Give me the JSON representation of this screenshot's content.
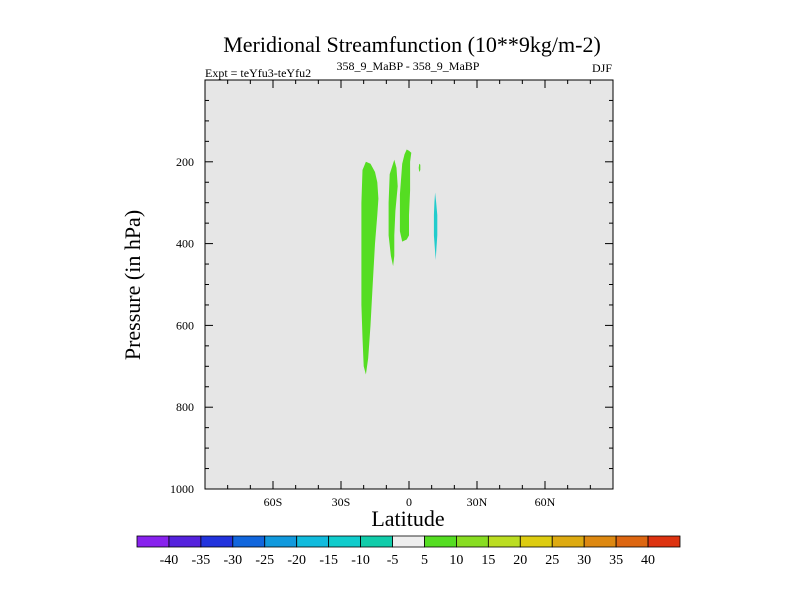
{
  "chart_data": {
    "type": "contour",
    "title": "Meridional Streamfunction (10**9kg/m-2)",
    "subtitle_left": "Expt = teYfu3-teYfu2",
    "subtitle_center": "358_9_MaBP - 358_9_MaBP",
    "subtitle_right": "DJF",
    "xlabel": "Latitude",
    "ylabel": "Pressure (in hPa)",
    "xlim": [
      -90,
      90
    ],
    "ylim": [
      1000,
      0
    ],
    "x_ticks": [
      {
        "value": -60,
        "label": "60S"
      },
      {
        "value": -30,
        "label": "30S"
      },
      {
        "value": 0,
        "label": "0"
      },
      {
        "value": 30,
        "label": "30N"
      },
      {
        "value": 60,
        "label": "60N"
      }
    ],
    "y_ticks": [
      {
        "value": 200,
        "label": "200"
      },
      {
        "value": 400,
        "label": "400"
      },
      {
        "value": 600,
        "label": "600"
      },
      {
        "value": 800,
        "label": "800"
      },
      {
        "value": 1000,
        "label": "1000"
      }
    ],
    "background_color": "#e6e6e6",
    "regions": [
      {
        "name": "positive-cell-1",
        "level": "5-10",
        "color": "#55dd22",
        "outline": [
          [
            -19,
            200
          ],
          [
            -17,
            205
          ],
          [
            -15,
            225
          ],
          [
            -14,
            250
          ],
          [
            -13.5,
            290
          ],
          [
            -14,
            330
          ],
          [
            -15,
            400
          ],
          [
            -16,
            500
          ],
          [
            -17,
            600
          ],
          [
            -18,
            680
          ],
          [
            -19,
            720
          ],
          [
            -20,
            700
          ],
          [
            -20.5,
            630
          ],
          [
            -21,
            550
          ],
          [
            -21,
            450
          ],
          [
            -21,
            300
          ],
          [
            -20.5,
            220
          ]
        ]
      },
      {
        "name": "positive-cell-2",
        "level": "5-10",
        "color": "#55dd22",
        "outline": [
          [
            -6.5,
            195
          ],
          [
            -5.5,
            215
          ],
          [
            -5,
            260
          ],
          [
            -6,
            320
          ],
          [
            -6.5,
            380
          ],
          [
            -6.5,
            430
          ],
          [
            -7,
            455
          ],
          [
            -8,
            430
          ],
          [
            -9,
            380
          ],
          [
            -9,
            300
          ],
          [
            -8.5,
            230
          ]
        ]
      },
      {
        "name": "positive-cell-3",
        "level": "5-10",
        "color": "#55dd22",
        "outline": [
          [
            -1,
            170
          ],
          [
            0,
            173
          ],
          [
            1,
            178
          ],
          [
            0.5,
            200
          ],
          [
            0.5,
            270
          ],
          [
            0,
            330
          ],
          [
            0,
            380
          ],
          [
            -1,
            390
          ],
          [
            -3,
            395
          ],
          [
            -4,
            370
          ],
          [
            -4,
            280
          ],
          [
            -3,
            205
          ],
          [
            -2,
            182
          ]
        ]
      },
      {
        "name": "positive-cell-4",
        "level": "5-10",
        "color": "#55dd22",
        "outline": [
          [
            4.5,
            205
          ],
          [
            5,
            207
          ],
          [
            5,
            220
          ],
          [
            4.5,
            225
          ],
          [
            4.3,
            215
          ]
        ]
      },
      {
        "name": "negative-cell-1",
        "level": "-10 to -5",
        "color": "#22cccc",
        "outline": [
          [
            11.5,
            275
          ],
          [
            12,
            300
          ],
          [
            12.5,
            330
          ],
          [
            12.5,
            380
          ],
          [
            12,
            420
          ],
          [
            11.8,
            440
          ],
          [
            11.5,
            420
          ],
          [
            11,
            380
          ],
          [
            11,
            330
          ],
          [
            11.2,
            300
          ]
        ]
      }
    ],
    "colorbar": {
      "labels": [
        "-40",
        "-35",
        "-30",
        "-25",
        "-20",
        "-15",
        "-10",
        "-5",
        "5",
        "10",
        "15",
        "20",
        "25",
        "30",
        "35",
        "40"
      ],
      "colors": [
        "#8822ee",
        "#5522dd",
        "#2233dd",
        "#1166dd",
        "#1199dd",
        "#11bbdd",
        "#11cccc",
        "#11ccaa",
        "#eeeeee",
        "#55dd22",
        "#88dd22",
        "#bbdd22",
        "#ddcc11",
        "#ddaa11",
        "#dd8811",
        "#dd6611",
        "#dd3311"
      ]
    }
  }
}
